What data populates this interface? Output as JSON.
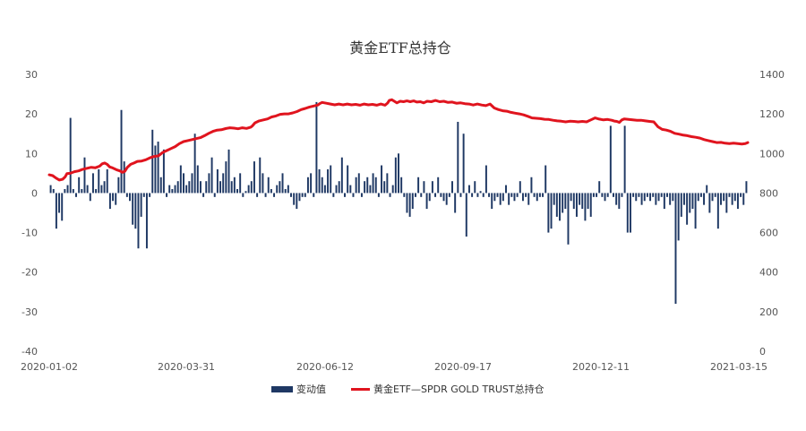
{
  "chart_data": {
    "type": "bar+line",
    "title": "黄金ETF总持仓",
    "x_range": [
      "2020-01-02",
      "2021-03-15"
    ],
    "x_tick_labels": [
      "2020-01-02",
      "2020-03-31",
      "2020-06-12",
      "2020-09-17",
      "2020-12-11",
      "2021-03-15"
    ],
    "y_left": {
      "min": -40,
      "max": 30,
      "ticks": [
        30,
        20,
        10,
        0,
        -10,
        -20,
        -30,
        -40
      ]
    },
    "y_right": {
      "min": 0,
      "max": 1400,
      "ticks": [
        1400,
        1200,
        1000,
        800,
        600,
        400,
        200,
        0
      ]
    },
    "legend_placement": "bottom",
    "grid": false,
    "series": [
      {
        "name": "变动值",
        "kind": "bar",
        "axis": "left",
        "color": "#1f3864",
        "values": [
          2,
          1,
          -9,
          -5,
          -7,
          1,
          2,
          19,
          1,
          -1,
          4,
          1,
          9,
          2,
          -2,
          5,
          1,
          6,
          2,
          3,
          6,
          -4,
          -2,
          -3,
          4,
          21,
          8,
          -1,
          -2,
          -8,
          -9,
          -14,
          -6,
          -1,
          -14,
          -1,
          16,
          12,
          13,
          4,
          11,
          -1,
          2,
          1,
          2,
          3,
          7,
          5,
          2,
          3,
          5,
          15,
          7,
          3,
          -1,
          3,
          5,
          9,
          -1,
          6,
          3,
          5,
          8,
          11,
          3,
          4,
          1,
          5,
          -1,
          0.5,
          2,
          3,
          8,
          -1,
          9,
          5,
          -1,
          4,
          1,
          -1,
          2,
          3,
          5,
          1,
          2,
          -1,
          -3,
          -4,
          -2,
          -1,
          -1,
          4,
          5,
          -1,
          23,
          6,
          4,
          2,
          6,
          7,
          -1,
          2,
          3,
          9,
          -1,
          7,
          2,
          -1,
          4,
          5,
          -1,
          3,
          4,
          2,
          5,
          4,
          -1,
          7,
          3,
          5,
          -1,
          2,
          9,
          10,
          4,
          -1,
          -5,
          -6,
          -4,
          -1,
          4,
          -1,
          3,
          -4,
          -2,
          3,
          -1,
          4,
          -1,
          -2,
          -3,
          -1,
          3,
          -5,
          18,
          -1,
          15,
          -11,
          2,
          -1,
          3,
          -1,
          0.5,
          -1,
          7,
          -1,
          -4,
          -2,
          -1,
          -3,
          -2,
          2,
          -3,
          -1,
          -2,
          -1,
          3,
          -2,
          -1,
          -3,
          4,
          -1,
          -2,
          -1,
          -1,
          7,
          -10,
          -9,
          -3,
          -6,
          -7,
          -5,
          -4,
          -13,
          -2,
          -4,
          -6,
          -3,
          -4,
          -7,
          -4,
          -6,
          -1,
          -1,
          3,
          -1,
          -2,
          -1,
          17,
          -1,
          -3,
          -4,
          -1,
          17,
          -10,
          -10,
          -1,
          -2,
          -1,
          -3,
          -2,
          -1,
          -2,
          -1,
          -3,
          -2,
          -1,
          -4,
          -1,
          -3,
          -2,
          -28,
          -12,
          -6,
          -3,
          -8,
          -5,
          -4,
          -9,
          -2,
          -1,
          -3,
          2,
          -5,
          -2,
          -1,
          -9,
          -3,
          -2,
          -5,
          -1,
          -3,
          -2,
          -4,
          -1,
          -3,
          3
        ]
      },
      {
        "name": "黄金ETF—SPDR GOLD TRUST总持仓",
        "kind": "line",
        "axis": "right",
        "color": "#e0141e",
        "points": [
          [
            0,
            892
          ],
          [
            4,
            888
          ],
          [
            8,
            876
          ],
          [
            12,
            866
          ],
          [
            16,
            870
          ],
          [
            19,
            882
          ],
          [
            21,
            898
          ],
          [
            25,
            900
          ],
          [
            30,
            908
          ],
          [
            35,
            912
          ],
          [
            40,
            920
          ],
          [
            45,
            925
          ],
          [
            50,
            930
          ],
          [
            55,
            928
          ],
          [
            60,
            936
          ],
          [
            63,
            948
          ],
          [
            66,
            952
          ],
          [
            69,
            945
          ],
          [
            72,
            932
          ],
          [
            75,
            928
          ],
          [
            80,
            918
          ],
          [
            84,
            912
          ],
          [
            87,
            905
          ],
          [
            90,
            910
          ],
          [
            93,
            930
          ],
          [
            97,
            945
          ],
          [
            101,
            952
          ],
          [
            105,
            960
          ],
          [
            110,
            962
          ],
          [
            115,
            968
          ],
          [
            120,
            978
          ],
          [
            125,
            985
          ],
          [
            130,
            988
          ],
          [
            135,
            1005
          ],
          [
            140,
            1015
          ],
          [
            145,
            1025
          ],
          [
            150,
            1035
          ],
          [
            155,
            1050
          ],
          [
            160,
            1060
          ],
          [
            165,
            1065
          ],
          [
            170,
            1070
          ],
          [
            175,
            1075
          ],
          [
            180,
            1080
          ],
          [
            185,
            1090
          ],
          [
            190,
            1102
          ],
          [
            195,
            1112
          ],
          [
            200,
            1118
          ],
          [
            205,
            1120
          ],
          [
            210,
            1126
          ],
          [
            215,
            1130
          ],
          [
            220,
            1128
          ],
          [
            225,
            1125
          ],
          [
            230,
            1130
          ],
          [
            235,
            1127
          ],
          [
            240,
            1133
          ],
          [
            242,
            1140
          ],
          [
            245,
            1155
          ],
          [
            250,
            1165
          ],
          [
            255,
            1170
          ],
          [
            260,
            1175
          ],
          [
            265,
            1185
          ],
          [
            270,
            1190
          ],
          [
            275,
            1198
          ],
          [
            280,
            1200
          ],
          [
            285,
            1200
          ],
          [
            290,
            1205
          ],
          [
            295,
            1212
          ],
          [
            300,
            1222
          ],
          [
            305,
            1228
          ],
          [
            310,
            1235
          ],
          [
            315,
            1240
          ],
          [
            320,
            1245
          ],
          [
            322,
            1252
          ],
          [
            325,
            1258
          ],
          [
            330,
            1254
          ],
          [
            335,
            1250
          ],
          [
            340,
            1246
          ],
          [
            345,
            1250
          ],
          [
            350,
            1246
          ],
          [
            355,
            1250
          ],
          [
            360,
            1246
          ],
          [
            365,
            1248
          ],
          [
            370,
            1244
          ],
          [
            375,
            1250
          ],
          [
            380,
            1246
          ],
          [
            385,
            1248
          ],
          [
            390,
            1244
          ],
          [
            395,
            1250
          ],
          [
            400,
            1244
          ],
          [
            403,
            1255
          ],
          [
            405,
            1268
          ],
          [
            408,
            1272
          ],
          [
            411,
            1264
          ],
          [
            414,
            1256
          ],
          [
            418,
            1264
          ],
          [
            422,
            1262
          ],
          [
            426,
            1266
          ],
          [
            430,
            1262
          ],
          [
            434,
            1266
          ],
          [
            438,
            1260
          ],
          [
            442,
            1262
          ],
          [
            446,
            1256
          ],
          [
            450,
            1264
          ],
          [
            455,
            1262
          ],
          [
            460,
            1268
          ],
          [
            465,
            1262
          ],
          [
            470,
            1264
          ],
          [
            475,
            1258
          ],
          [
            480,
            1260
          ],
          [
            485,
            1254
          ],
          [
            490,
            1256
          ],
          [
            495,
            1252
          ],
          [
            500,
            1250
          ],
          [
            505,
            1245
          ],
          [
            510,
            1250
          ],
          [
            515,
            1245
          ],
          [
            520,
            1242
          ],
          [
            525,
            1250
          ],
          [
            530,
            1230
          ],
          [
            535,
            1222
          ],
          [
            540,
            1216
          ],
          [
            545,
            1214
          ],
          [
            550,
            1208
          ],
          [
            555,
            1204
          ],
          [
            560,
            1200
          ],
          [
            565,
            1195
          ],
          [
            570,
            1188
          ],
          [
            575,
            1180
          ],
          [
            580,
            1178
          ],
          [
            585,
            1176
          ],
          [
            590,
            1173
          ],
          [
            595,
            1172
          ],
          [
            600,
            1168
          ],
          [
            605,
            1165
          ],
          [
            610,
            1163
          ],
          [
            615,
            1160
          ],
          [
            620,
            1163
          ],
          [
            625,
            1162
          ],
          [
            630,
            1160
          ],
          [
            635,
            1162
          ],
          [
            640,
            1160
          ],
          [
            645,
            1170
          ],
          [
            650,
            1180
          ],
          [
            655,
            1174
          ],
          [
            660,
            1170
          ],
          [
            665,
            1172
          ],
          [
            670,
            1168
          ],
          [
            673,
            1164
          ],
          [
            676,
            1162
          ],
          [
            679,
            1157
          ],
          [
            682,
            1170
          ],
          [
            685,
            1175
          ],
          [
            690,
            1172
          ],
          [
            695,
            1170
          ],
          [
            700,
            1168
          ],
          [
            705,
            1168
          ],
          [
            710,
            1165
          ],
          [
            715,
            1162
          ],
          [
            720,
            1160
          ],
          [
            722,
            1150
          ],
          [
            725,
            1135
          ],
          [
            730,
            1122
          ],
          [
            735,
            1118
          ],
          [
            740,
            1112
          ],
          [
            745,
            1102
          ],
          [
            750,
            1098
          ],
          [
            755,
            1093
          ],
          [
            760,
            1090
          ],
          [
            765,
            1085
          ],
          [
            770,
            1082
          ],
          [
            775,
            1078
          ],
          [
            780,
            1070
          ],
          [
            785,
            1065
          ],
          [
            790,
            1060
          ],
          [
            795,
            1055
          ],
          [
            800,
            1056
          ],
          [
            805,
            1052
          ],
          [
            810,
            1050
          ],
          [
            815,
            1052
          ],
          [
            820,
            1050
          ],
          [
            825,
            1048
          ],
          [
            829,
            1050
          ],
          [
            832,
            1055
          ]
        ]
      }
    ]
  }
}
